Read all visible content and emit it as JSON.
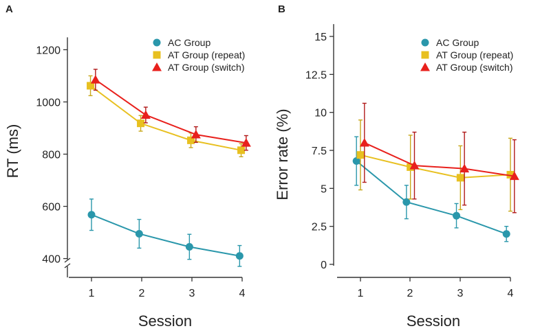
{
  "colors": {
    "ac": "#2a97ab",
    "at_repeat": "#e8c020",
    "at_switch": "#e8201c",
    "at_repeat_err": "#c8a81a",
    "at_switch_err": "#b01818",
    "axis": "#333333"
  },
  "chart_data": [
    {
      "panel": "A",
      "type": "line",
      "xlabel": "Session",
      "ylabel": "RT (ms)",
      "ylim": [
        370,
        1280
      ],
      "axis_break": true,
      "x_ticks": [
        1,
        2,
        3,
        4
      ],
      "y_ticks": [
        400,
        600,
        800,
        1000,
        1200
      ],
      "legend_position": "top-right",
      "series": [
        {
          "name": "AC Group",
          "marker": "circle",
          "color_key": "ac",
          "x": [
            1,
            1.95,
            2.95,
            3.95
          ],
          "values": [
            568,
            495,
            445,
            410
          ],
          "errors": [
            60,
            55,
            48,
            40
          ]
        },
        {
          "name": "AT Group (repeat)",
          "marker": "square",
          "color_key": "at_repeat",
          "x": [
            0.98,
            1.98,
            2.98,
            3.98
          ],
          "values": [
            1062,
            918,
            853,
            815
          ],
          "errors": [
            38,
            30,
            28,
            25
          ]
        },
        {
          "name": "AT Group (switch)",
          "marker": "triangle",
          "color_key": "at_switch",
          "x": [
            1.08,
            2.08,
            3.08,
            4.08
          ],
          "values": [
            1085,
            950,
            875,
            843
          ],
          "errors": [
            40,
            30,
            30,
            28
          ]
        }
      ]
    },
    {
      "panel": "B",
      "type": "line",
      "xlabel": "Session",
      "ylabel": "Error rate (%)",
      "ylim": [
        0,
        15.5
      ],
      "axis_break": false,
      "x_ticks": [
        1,
        2,
        3,
        4
      ],
      "y_ticks": [
        0,
        2.5,
        5,
        7.5,
        10,
        12.5,
        15
      ],
      "legend_position": "top-right",
      "series": [
        {
          "name": "AC Group",
          "marker": "circle",
          "color_key": "ac",
          "x": [
            0.92,
            1.92,
            2.92,
            3.92
          ],
          "values": [
            6.8,
            4.1,
            3.2,
            2.0
          ],
          "errors": [
            1.6,
            1.1,
            0.8,
            0.5
          ]
        },
        {
          "name": "AT Group (repeat)",
          "marker": "square",
          "color_key": "at_repeat",
          "x": [
            1.0,
            2.0,
            3.0,
            4.0
          ],
          "values": [
            7.2,
            6.4,
            5.7,
            5.9
          ],
          "errors": [
            2.3,
            2.1,
            2.1,
            2.4
          ]
        },
        {
          "name": "AT Group (switch)",
          "marker": "triangle",
          "color_key": "at_switch",
          "x": [
            1.08,
            2.08,
            3.08,
            4.08
          ],
          "values": [
            8.0,
            6.5,
            6.3,
            5.8
          ],
          "errors": [
            2.6,
            2.2,
            2.4,
            2.4
          ]
        }
      ]
    }
  ]
}
